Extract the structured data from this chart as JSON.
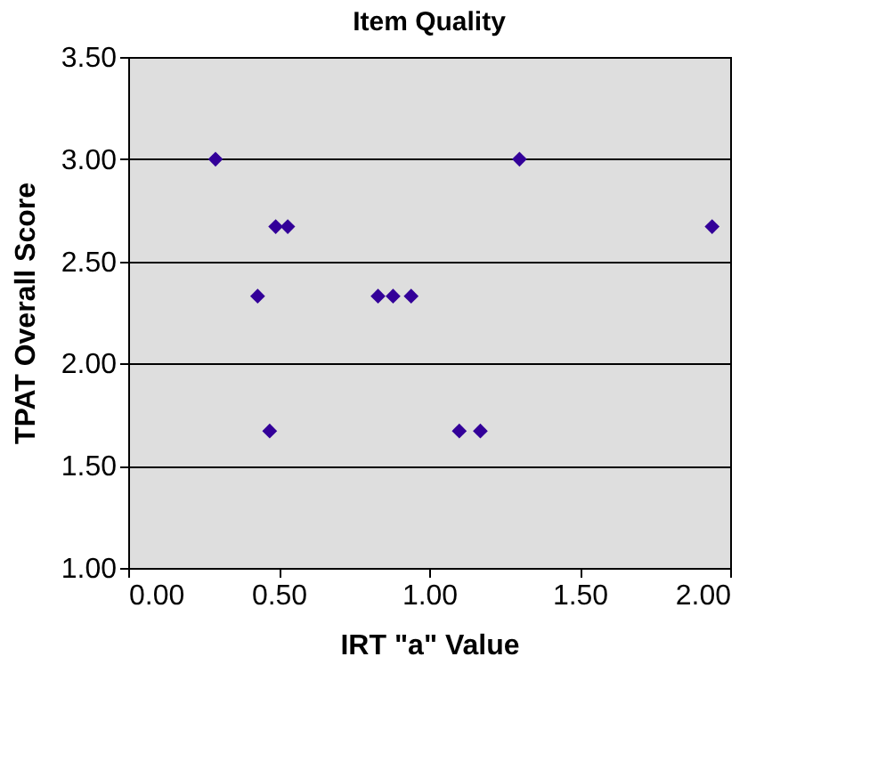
{
  "chart_data": {
    "type": "scatter",
    "title": "Item Quality",
    "xlabel": "IRT \"a\" Value",
    "ylabel": "TPAT Overall Score",
    "x": [
      0.29,
      1.3,
      0.49,
      0.53,
      1.94,
      0.43,
      0.83,
      0.88,
      0.94,
      0.47,
      1.1,
      1.17
    ],
    "series": [
      {
        "color": "#330099",
        "values": [
          3.0,
          3.0,
          2.67,
          2.67,
          2.67,
          2.33,
          2.33,
          2.33,
          2.33,
          1.67,
          1.67,
          1.67
        ]
      }
    ],
    "xlim": [
      0,
      2
    ],
    "xticks": [
      {
        "value": 0,
        "label": "0.00"
      },
      {
        "value": 0.5,
        "label": "0.50"
      },
      {
        "value": 1,
        "label": "1.00"
      },
      {
        "value": 1.5,
        "label": "1.50"
      },
      {
        "value": 2,
        "label": "2.00"
      }
    ],
    "ylim": [
      1,
      3.5
    ],
    "yticks": [
      {
        "value": 1,
        "label": "1.00"
      },
      {
        "value": 1.5,
        "label": "1.50"
      },
      {
        "value": 2,
        "label": "2.00"
      },
      {
        "value": 2.5,
        "label": "2.50"
      },
      {
        "value": 3,
        "label": "3.00"
      },
      {
        "value": 3.5,
        "label": "3.50"
      }
    ],
    "grid": "y",
    "marker": "diamond"
  }
}
